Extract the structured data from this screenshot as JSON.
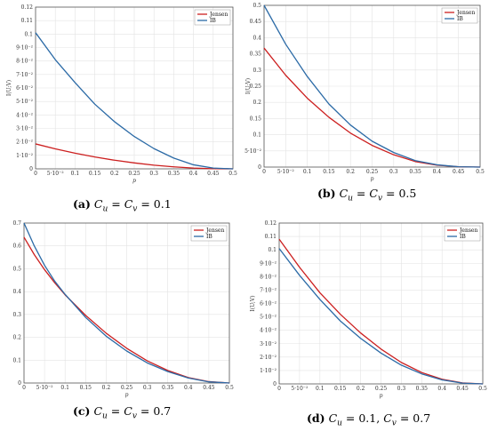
{
  "captions": [
    {
      "letter": "(a)",
      "text": "C_u = C_v = 0.1",
      "parts": [
        "C",
        "u",
        " = ",
        "C",
        "v",
        " = 0.1"
      ]
    },
    {
      "letter": "(b)",
      "text": "C_u = C_v = 0.5",
      "parts": [
        "C",
        "u",
        " = ",
        "C",
        "v",
        " = 0.5"
      ]
    },
    {
      "letter": "(c)",
      "text": "C_u = C_v = 0.7",
      "parts": [
        "C",
        "u",
        " = ",
        "C",
        "v",
        " = 0.7"
      ]
    },
    {
      "letter": "(d)",
      "text": "C_u = 0.1, C_v = 0.7",
      "parts": [
        "C",
        "u",
        " = 0.1, ",
        "C",
        "v",
        " = 0.7"
      ]
    }
  ],
  "colors": {
    "jensen": "#cc1f1f",
    "ib": "#2b6aa6",
    "grid": "#e3e3e3",
    "axis": "#555555"
  },
  "chart_data": [
    {
      "type": "line",
      "xlabel": "p",
      "ylabel": "I(U;V)",
      "xlim": [
        0,
        0.5
      ],
      "ylim": [
        0,
        0.12
      ],
      "x_ticks": [
        "0",
        "5·10⁻²",
        "0.1",
        "0.15",
        "0.2",
        "0.25",
        "0.3",
        "0.35",
        "0.4",
        "0.45",
        "0.5"
      ],
      "x_tick_values": [
        0,
        0.05,
        0.1,
        0.15,
        0.2,
        0.25,
        0.3,
        0.35,
        0.4,
        0.45,
        0.5
      ],
      "y_ticks": [
        "0",
        "1·10⁻²",
        "2·10⁻²",
        "3·10⁻²",
        "4·10⁻²",
        "5·10⁻²",
        "6·10⁻²",
        "7·10⁻²",
        "8·10⁻²",
        "9·10⁻²",
        "0.1",
        "0.11",
        "0.12"
      ],
      "y_tick_values": [
        0,
        0.01,
        0.02,
        0.03,
        0.04,
        0.05,
        0.06,
        0.07,
        0.08,
        0.09,
        0.1,
        0.11,
        0.12
      ],
      "grid": true,
      "legend_position": "top-right",
      "x": [
        0,
        0.05,
        0.1,
        0.15,
        0.2,
        0.25,
        0.3,
        0.35,
        0.4,
        0.45,
        0.5
      ],
      "series": [
        {
          "name": "Jensen",
          "color_key": "jensen",
          "values": [
            0.0185,
            0.0148,
            0.0116,
            0.0088,
            0.0064,
            0.0044,
            0.0027,
            0.0015,
            0.0006,
            0.0001,
            0
          ]
        },
        {
          "name": "IB",
          "color_key": "ib",
          "values": [
            0.101,
            0.081,
            0.064,
            0.048,
            0.035,
            0.024,
            0.015,
            0.008,
            0.003,
            0.0006,
            0
          ]
        }
      ]
    },
    {
      "type": "line",
      "xlabel": "p",
      "ylabel": "I(U;V)",
      "xlim": [
        0,
        0.5
      ],
      "ylim": [
        0,
        0.5
      ],
      "x_ticks": [
        "0",
        "5·10⁻²",
        "0.1",
        "0.15",
        "0.2",
        "0.25",
        "0.3",
        "0.35",
        "0.4",
        "0.45",
        "0.5"
      ],
      "x_tick_values": [
        0,
        0.05,
        0.1,
        0.15,
        0.2,
        0.25,
        0.3,
        0.35,
        0.4,
        0.45,
        0.5
      ],
      "y_ticks": [
        "0",
        "5·10⁻²",
        "0.1",
        "0.15",
        "0.2",
        "0.25",
        "0.3",
        "0.35",
        "0.4",
        "0.45",
        "0.5"
      ],
      "y_tick_values": [
        0,
        0.05,
        0.1,
        0.15,
        0.2,
        0.25,
        0.3,
        0.35,
        0.4,
        0.45,
        0.5
      ],
      "grid": true,
      "legend_position": "top-right",
      "x": [
        0,
        0.05,
        0.1,
        0.15,
        0.2,
        0.25,
        0.3,
        0.35,
        0.4,
        0.45,
        0.5
      ],
      "series": [
        {
          "name": "Jensen",
          "color_key": "jensen",
          "values": [
            0.368,
            0.284,
            0.213,
            0.154,
            0.105,
            0.067,
            0.038,
            0.017,
            0.006,
            0.001,
            0
          ]
        },
        {
          "name": "IB",
          "color_key": "ib",
          "values": [
            0.5,
            0.38,
            0.28,
            0.195,
            0.13,
            0.08,
            0.045,
            0.02,
            0.007,
            0.001,
            0
          ]
        }
      ]
    },
    {
      "type": "line",
      "xlabel": "p",
      "ylabel": "I(U;V)",
      "xlim": [
        0,
        0.5
      ],
      "ylim": [
        0,
        0.7
      ],
      "x_ticks": [
        "0",
        "5·10⁻²",
        "0.1",
        "0.15",
        "0.2",
        "0.25",
        "0.3",
        "0.35",
        "0.4",
        "0.45",
        "0.5"
      ],
      "x_tick_values": [
        0,
        0.05,
        0.1,
        0.15,
        0.2,
        0.25,
        0.3,
        0.35,
        0.4,
        0.45,
        0.5
      ],
      "y_ticks": [
        "0",
        "0.1",
        "0.2",
        "0.3",
        "0.4",
        "0.5",
        "0.6",
        "0.7"
      ],
      "y_tick_values": [
        0,
        0.1,
        0.2,
        0.3,
        0.4,
        0.5,
        0.6,
        0.7
      ],
      "grid": true,
      "legend_position": "top-right",
      "x": [
        0,
        0.025,
        0.05,
        0.075,
        0.1,
        0.15,
        0.2,
        0.25,
        0.3,
        0.35,
        0.4,
        0.45,
        0.5
      ],
      "series": [
        {
          "name": "Jensen",
          "color_key": "jensen",
          "values": [
            0.638,
            0.562,
            0.496,
            0.438,
            0.386,
            0.296,
            0.218,
            0.152,
            0.097,
            0.055,
            0.024,
            0.006,
            0
          ]
        },
        {
          "name": "IB",
          "color_key": "ib",
          "values": [
            0.7,
            0.6,
            0.515,
            0.445,
            0.388,
            0.287,
            0.205,
            0.14,
            0.088,
            0.05,
            0.022,
            0.005,
            0
          ]
        }
      ]
    },
    {
      "type": "line",
      "xlabel": "p",
      "ylabel": "I(U;V)",
      "xlim": [
        0,
        0.5
      ],
      "ylim": [
        0,
        0.12
      ],
      "x_ticks": [
        "0",
        "5·10⁻²",
        "0.1",
        "0.15",
        "0.2",
        "0.25",
        "0.3",
        "0.35",
        "0.4",
        "0.45",
        "0.5"
      ],
      "x_tick_values": [
        0,
        0.05,
        0.1,
        0.15,
        0.2,
        0.25,
        0.3,
        0.35,
        0.4,
        0.45,
        0.5
      ],
      "y_ticks": [
        "0",
        "1·10⁻²",
        "2·10⁻²",
        "3·10⁻²",
        "4·10⁻²",
        "5·10⁻²",
        "6·10⁻²",
        "7·10⁻²",
        "8·10⁻²",
        "9·10⁻²",
        "0.1",
        "0.11",
        "0.12"
      ],
      "y_tick_values": [
        0,
        0.01,
        0.02,
        0.03,
        0.04,
        0.05,
        0.06,
        0.07,
        0.08,
        0.09,
        0.1,
        0.11,
        0.12
      ],
      "grid": true,
      "legend_position": "top-right",
      "x": [
        0,
        0.05,
        0.1,
        0.15,
        0.2,
        0.25,
        0.3,
        0.35,
        0.4,
        0.45,
        0.5
      ],
      "series": [
        {
          "name": "Jensen",
          "color_key": "jensen",
          "values": [
            0.108,
            0.087,
            0.068,
            0.052,
            0.038,
            0.026,
            0.016,
            0.0085,
            0.0035,
            0.0007,
            0
          ]
        },
        {
          "name": "IB",
          "color_key": "ib",
          "values": [
            0.101,
            0.081,
            0.063,
            0.047,
            0.034,
            0.023,
            0.014,
            0.0075,
            0.003,
            0.0006,
            0
          ]
        }
      ]
    }
  ]
}
